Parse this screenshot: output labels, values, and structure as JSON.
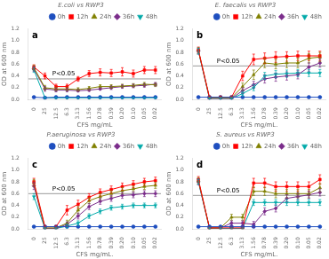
{
  "chart_data": [
    {
      "type": "line",
      "title": "E.coli vs RWP3",
      "categories": [
        "0",
        "25",
        "12.5",
        "6.3",
        "3.13",
        "1.56",
        "0.78",
        "0.39",
        "0.20",
        "0.10",
        "0.05",
        "0.02"
      ],
      "xlabel": "CFS mg/mL",
      "ylabel": "OD at 600 nm",
      "ylim": [
        0.0,
        1.2
      ],
      "yticks": [
        {
          "value": 0.0,
          "label": "0.0"
        },
        0.2,
        0.4,
        0.6,
        0.8,
        {
          "value": 1.0,
          "label": "1.0"
        },
        1.2
      ],
      "grid": false,
      "legend": "upper right",
      "annotations": [
        {
          "text": "a"
        },
        {
          "text": "P<0.05",
          "y": 0.35
        }
      ],
      "series": [
        {
          "name": "0h",
          "color": "#1F4FBF",
          "marker": "circle",
          "values": [
            0.04,
            0.03,
            0.04,
            0.04,
            0.04,
            0.04,
            0.04,
            0.04,
            0.04,
            0.04,
            0.04,
            0.04
          ],
          "errors": [
            0.01,
            0.005,
            0.005,
            0.005,
            0.005,
            0.005,
            0.005,
            0.005,
            0.005,
            0.005,
            0.005,
            0.005
          ]
        },
        {
          "name": "12h",
          "color": "#FF0000",
          "marker": "square",
          "values": [
            0.55,
            0.4,
            0.22,
            0.22,
            0.35,
            0.44,
            0.46,
            0.45,
            0.47,
            0.44,
            0.5,
            0.5
          ],
          "errors": [
            0.04,
            0.05,
            0.04,
            0.04,
            0.04,
            0.05,
            0.06,
            0.06,
            0.07,
            0.06,
            0.06,
            0.06
          ]
        },
        {
          "name": "24h",
          "color": "#808000",
          "marker": "triangle-up",
          "values": [
            0.54,
            0.2,
            0.18,
            0.18,
            0.17,
            0.19,
            0.22,
            0.22,
            0.23,
            0.24,
            0.26,
            0.25
          ],
          "errors": [
            0.04,
            0.04,
            0.03,
            0.03,
            0.03,
            0.03,
            0.03,
            0.03,
            0.03,
            0.03,
            0.03,
            0.03
          ]
        },
        {
          "name": "36h",
          "color": "#7B2D8B",
          "marker": "diamond",
          "values": [
            0.52,
            0.18,
            0.16,
            0.16,
            0.15,
            0.16,
            0.18,
            0.2,
            0.22,
            0.23,
            0.24,
            0.26
          ],
          "errors": [
            0.04,
            0.04,
            0.03,
            0.03,
            0.02,
            0.02,
            0.02,
            0.03,
            0.03,
            0.03,
            0.03,
            0.03
          ]
        },
        {
          "name": "48h",
          "color": "#00AAAA",
          "marker": "triangle-down",
          "values": [
            0.5,
            0.03,
            0.03,
            0.03,
            0.03,
            0.03,
            0.03,
            0.03,
            0.03,
            0.03,
            0.03,
            0.03
          ],
          "errors": [
            0.04,
            0.01,
            0.01,
            0.01,
            0.01,
            0.01,
            0.01,
            0.01,
            0.01,
            0.01,
            0.01,
            0.01
          ]
        }
      ]
    },
    {
      "type": "line",
      "title": "E. faecalis vs RWP3",
      "categories": [
        "0",
        "25",
        "12.5",
        "6.3",
        "3.13",
        "1.56",
        "0.78",
        "0.39",
        "0.20",
        "0.10",
        "0.05",
        "0.02"
      ],
      "xlabel": "CFS mg/mL.",
      "ylabel": "OD at 600 nm",
      "ylim": [
        0.0,
        1.2
      ],
      "yticks": [
        {
          "value": 0.0,
          "label": "0.0"
        },
        0.2,
        0.4,
        0.6,
        0.8,
        {
          "value": 1.0,
          "label": "1.0"
        },
        1.2
      ],
      "grid": false,
      "legend": "upper right",
      "annotations": [
        {
          "text": "b"
        },
        {
          "text": "P<0.05",
          "y": 0.57
        }
      ],
      "series": [
        {
          "name": "0h",
          "color": "#1F4FBF",
          "marker": "circle",
          "values": [
            0.04,
            0.04,
            0.04,
            0.04,
            0.04,
            0.04,
            0.04,
            0.04,
            0.04,
            0.04,
            0.04,
            0.04
          ],
          "errors": [
            0.01,
            0.005,
            0.005,
            0.005,
            0.005,
            0.005,
            0.005,
            0.005,
            0.005,
            0.005,
            0.005,
            0.005
          ]
        },
        {
          "name": "12h",
          "color": "#FF0000",
          "marker": "square",
          "values": [
            0.84,
            0.04,
            0.04,
            0.04,
            0.4,
            0.68,
            0.7,
            0.72,
            0.73,
            0.74,
            0.74,
            0.74
          ],
          "errors": [
            0.05,
            0.02,
            0.02,
            0.02,
            0.08,
            0.09,
            0.09,
            0.09,
            0.08,
            0.08,
            0.08,
            0.08
          ]
        },
        {
          "name": "24h",
          "color": "#808000",
          "marker": "triangle-up",
          "values": [
            0.83,
            0.03,
            0.03,
            0.03,
            0.22,
            0.42,
            0.62,
            0.6,
            0.62,
            0.62,
            0.7,
            0.72
          ],
          "errors": [
            0.05,
            0.01,
            0.01,
            0.01,
            0.06,
            0.08,
            0.08,
            0.08,
            0.08,
            0.08,
            0.08,
            0.08
          ]
        },
        {
          "name": "36h",
          "color": "#7B2D8B",
          "marker": "diamond",
          "values": [
            0.82,
            0.02,
            0.02,
            0.02,
            0.15,
            0.25,
            0.35,
            0.38,
            0.4,
            0.42,
            0.55,
            0.62
          ],
          "errors": [
            0.05,
            0.01,
            0.01,
            0.01,
            0.05,
            0.06,
            0.07,
            0.07,
            0.07,
            0.07,
            0.07,
            0.07
          ]
        },
        {
          "name": "48h",
          "color": "#00AAAA",
          "marker": "triangle-down",
          "values": [
            0.82,
            0.02,
            0.02,
            0.02,
            0.1,
            0.2,
            0.4,
            0.43,
            0.44,
            0.45,
            0.45,
            0.45
          ],
          "errors": [
            0.05,
            0.01,
            0.01,
            0.01,
            0.04,
            0.05,
            0.06,
            0.06,
            0.06,
            0.06,
            0.06,
            0.06
          ]
        }
      ]
    },
    {
      "type": "line",
      "title": "P.aeruginosa vs RWP3",
      "categories": [
        "0",
        "25",
        "12.5",
        "6.3",
        "3.13",
        "1.56",
        "0.78",
        "0.39",
        "0.20",
        "0.10",
        "0.05",
        "0.02"
      ],
      "xlabel": "CFS mg/mL.",
      "ylabel": "OD at 600 nm",
      "ylim": [
        0.0,
        1.2
      ],
      "yticks": [
        {
          "value": 0.0,
          "label": "0.0"
        },
        0.2,
        0.4,
        0.6,
        0.8,
        {
          "value": 1.0,
          "label": "1.0"
        },
        1.2
      ],
      "grid": false,
      "legend": "upper right",
      "annotations": [
        {
          "text": "c"
        },
        {
          "text": "P<0.05",
          "y": 0.6
        }
      ],
      "series": [
        {
          "name": "0h",
          "color": "#1F4FBF",
          "marker": "circle",
          "values": [
            0.04,
            0.04,
            0.04,
            0.04,
            0.04,
            0.04,
            0.04,
            0.04,
            0.04,
            0.04,
            0.04,
            0.04
          ],
          "errors": [
            0.01,
            0.005,
            0.005,
            0.005,
            0.005,
            0.005,
            0.005,
            0.005,
            0.005,
            0.005,
            0.005,
            0.005
          ]
        },
        {
          "name": "12h",
          "color": "#FF0000",
          "marker": "square",
          "values": [
            0.8,
            0.04,
            0.04,
            0.32,
            0.42,
            0.54,
            0.62,
            0.67,
            0.72,
            0.76,
            0.8,
            0.82
          ],
          "errors": [
            0.06,
            0.02,
            0.02,
            0.08,
            0.07,
            0.06,
            0.06,
            0.06,
            0.06,
            0.06,
            0.06,
            0.06
          ]
        },
        {
          "name": "24h",
          "color": "#808000",
          "marker": "triangle-up",
          "values": [
            0.78,
            0.02,
            0.02,
            0.1,
            0.32,
            0.48,
            0.55,
            0.6,
            0.65,
            0.68,
            0.72,
            0.74
          ],
          "errors": [
            0.06,
            0.01,
            0.01,
            0.05,
            0.06,
            0.05,
            0.05,
            0.05,
            0.05,
            0.05,
            0.05,
            0.05
          ]
        },
        {
          "name": "36h",
          "color": "#7B2D8B",
          "marker": "diamond",
          "values": [
            0.73,
            0.01,
            0.01,
            0.08,
            0.22,
            0.38,
            0.47,
            0.52,
            0.57,
            0.58,
            0.6,
            0.6
          ],
          "errors": [
            0.06,
            0.01,
            0.01,
            0.04,
            0.05,
            0.05,
            0.05,
            0.05,
            0.05,
            0.05,
            0.05,
            0.05
          ]
        },
        {
          "name": "48h",
          "color": "#00AAAA",
          "marker": "triangle-down",
          "values": [
            0.55,
            0.01,
            0.01,
            0.05,
            0.1,
            0.22,
            0.3,
            0.36,
            0.38,
            0.4,
            0.4,
            0.4
          ],
          "errors": [
            0.05,
            0.01,
            0.01,
            0.03,
            0.04,
            0.04,
            0.04,
            0.04,
            0.04,
            0.04,
            0.04,
            0.04
          ]
        }
      ]
    },
    {
      "type": "line",
      "title": "S. aureus vs RWP3",
      "categories": [
        "0",
        "25",
        "12.5",
        "6.3",
        "3.13",
        "1.56",
        "0.78",
        "0.39",
        "0.20",
        "0.10",
        "0.05",
        "0.02"
      ],
      "xlabel": "CFS mg/mL.",
      "ylabel": "OD at 600 nm",
      "ylim": [
        0.0,
        1.2
      ],
      "yticks": [
        {
          "value": 0.0,
          "label": "0.0"
        },
        0.2,
        0.4,
        0.6,
        0.8,
        {
          "value": 1.0,
          "label": "1.0"
        },
        1.2
      ],
      "grid": false,
      "legend": "upper right",
      "annotations": [
        {
          "text": "d"
        },
        {
          "text": "P<0.05",
          "y": 0.57
        }
      ],
      "series": [
        {
          "name": "0h",
          "color": "#1F4FBF",
          "marker": "circle",
          "values": [
            0.04,
            0.04,
            0.04,
            0.04,
            0.04,
            0.04,
            0.04,
            0.04,
            0.04,
            0.04,
            0.04,
            0.04
          ],
          "errors": [
            0.01,
            0.005,
            0.005,
            0.005,
            0.005,
            0.005,
            0.005,
            0.005,
            0.005,
            0.005,
            0.005,
            0.005
          ]
        },
        {
          "name": "12h",
          "color": "#FF0000",
          "marker": "square",
          "values": [
            0.84,
            0.02,
            0.02,
            0.02,
            0.02,
            0.78,
            0.78,
            0.72,
            0.72,
            0.72,
            0.72,
            0.84
          ],
          "errors": [
            0.05,
            0.01,
            0.01,
            0.01,
            0.01,
            0.08,
            0.08,
            0.08,
            0.08,
            0.08,
            0.08,
            0.08
          ]
        },
        {
          "name": "24h",
          "color": "#808000",
          "marker": "triangle-up",
          "values": [
            0.82,
            0.02,
            0.02,
            0.2,
            0.2,
            0.64,
            0.64,
            0.6,
            0.6,
            0.6,
            0.6,
            0.7
          ],
          "errors": [
            0.05,
            0.01,
            0.01,
            0.05,
            0.05,
            0.07,
            0.07,
            0.07,
            0.07,
            0.07,
            0.07,
            0.07
          ]
        },
        {
          "name": "36h",
          "color": "#7B2D8B",
          "marker": "diamond",
          "values": [
            0.8,
            0.02,
            0.02,
            0.1,
            0.1,
            0.08,
            0.3,
            0.35,
            0.52,
            0.55,
            0.58,
            0.62
          ],
          "errors": [
            0.05,
            0.01,
            0.01,
            0.04,
            0.04,
            0.05,
            0.06,
            0.06,
            0.06,
            0.06,
            0.06,
            0.06
          ]
        },
        {
          "name": "48h",
          "color": "#00AAAA",
          "marker": "triangle-down",
          "values": [
            0.8,
            0.01,
            0.01,
            0.01,
            0.01,
            0.45,
            0.45,
            0.45,
            0.45,
            0.45,
            0.45,
            0.45
          ],
          "errors": [
            0.04,
            0.01,
            0.01,
            0.01,
            0.01,
            0.05,
            0.05,
            0.05,
            0.05,
            0.05,
            0.05,
            0.05
          ]
        }
      ]
    }
  ]
}
